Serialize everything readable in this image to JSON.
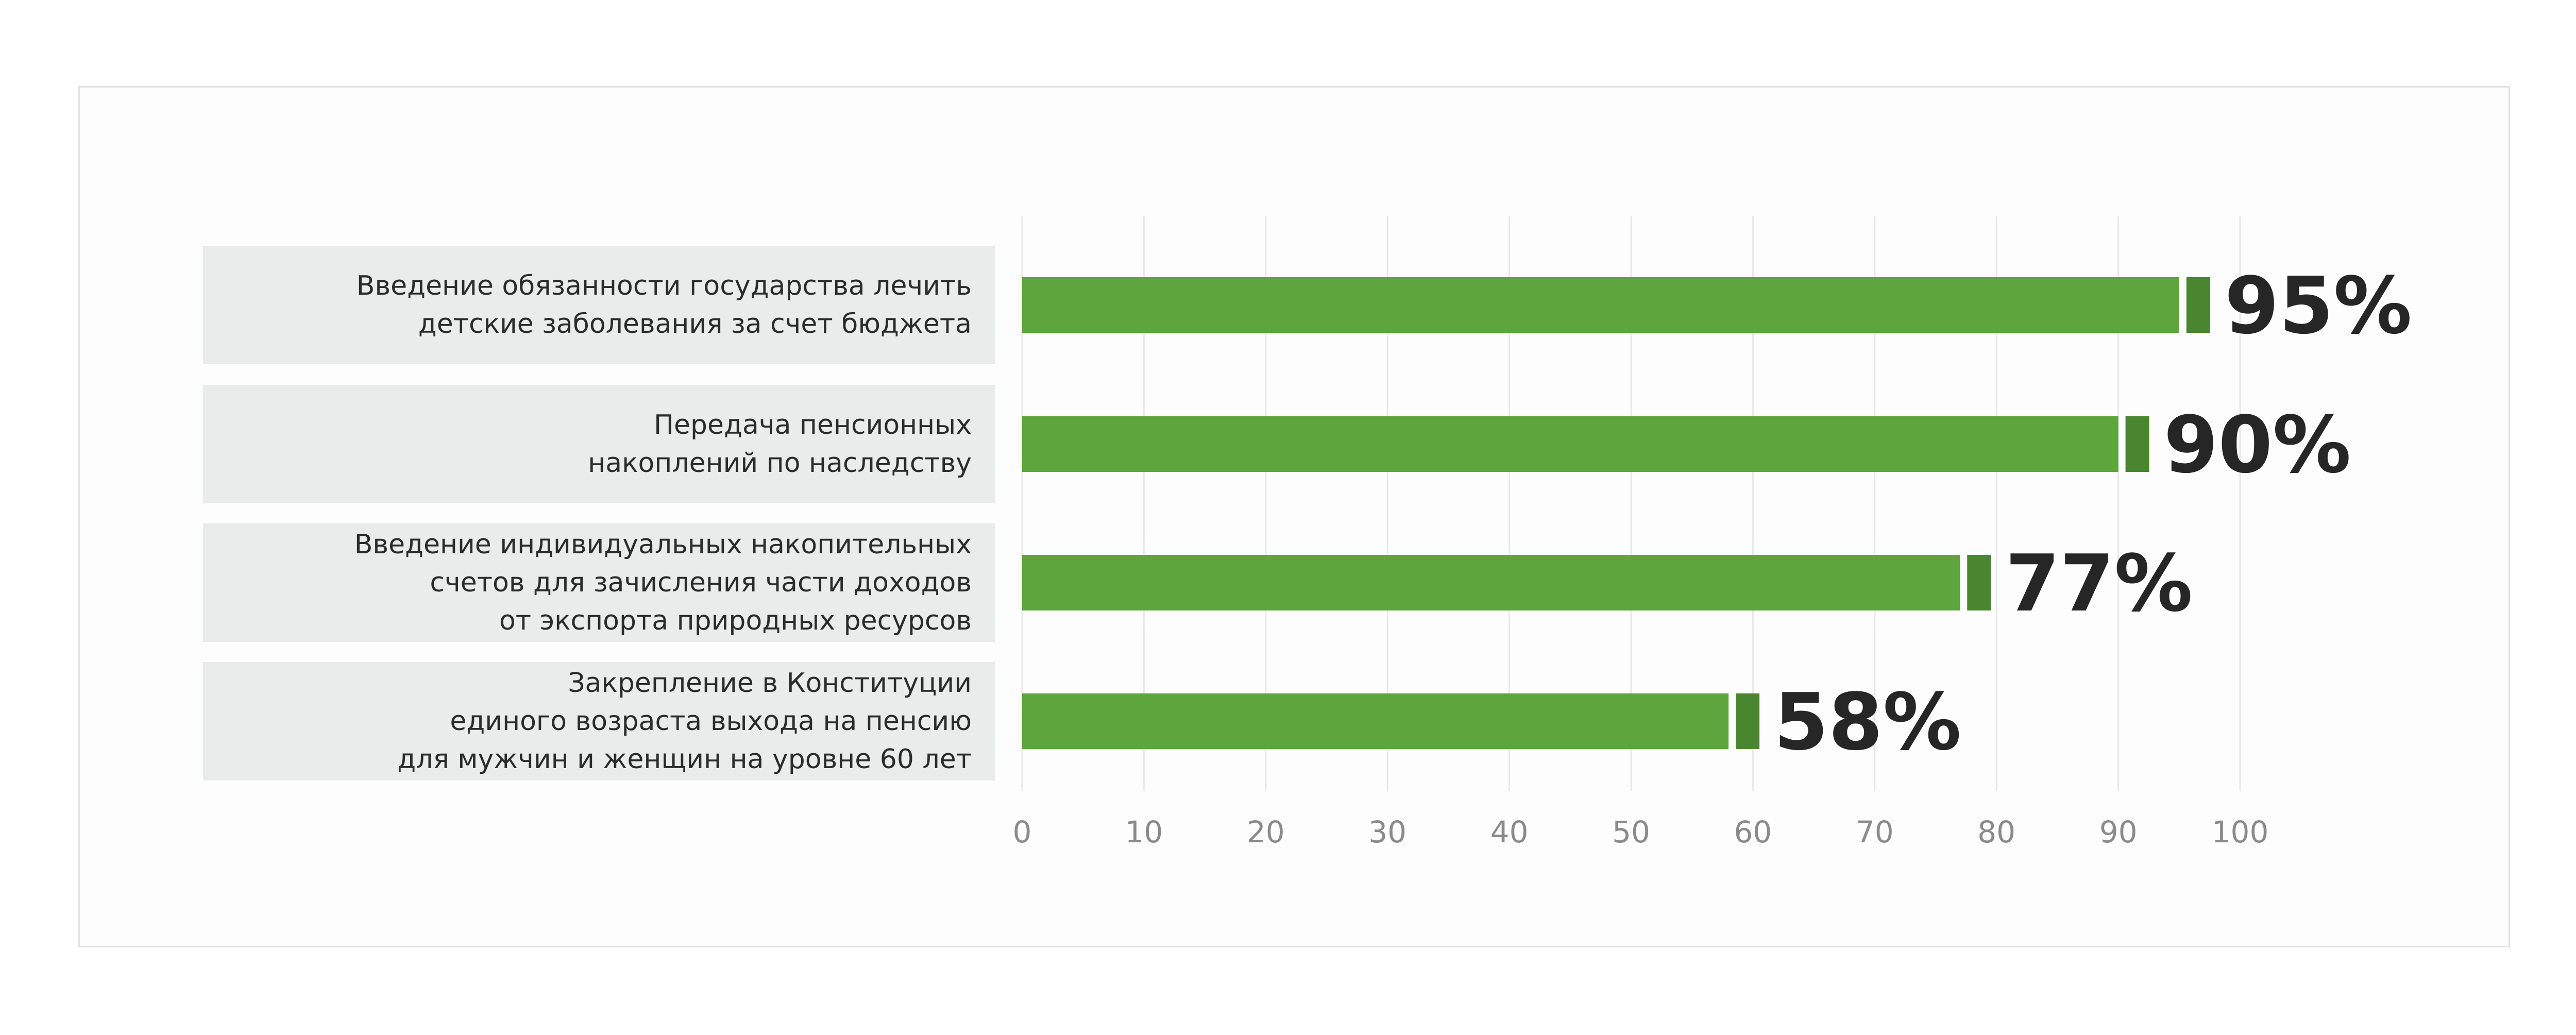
{
  "colors": {
    "bar": "#5ea53d",
    "bar_cap": "#4a8530",
    "grid": "#e8e8e8",
    "category_box": "#eaeceb"
  },
  "chart_data": {
    "type": "bar",
    "orientation": "horizontal",
    "title": "",
    "xlabel": "",
    "ylabel": "",
    "xlim": [
      0,
      100
    ],
    "x_ticks": [
      0,
      10,
      20,
      30,
      40,
      50,
      60,
      70,
      80,
      90,
      100
    ],
    "grid": "vertical",
    "categories": [
      [
        "Введение обязанности государства лечить",
        "детские заболевания за счет бюджета"
      ],
      [
        "Передача пенсионных",
        "накоплений по наследству"
      ],
      [
        "Введение индивидуальных накопительных",
        "счетов для зачисления части доходов",
        "от экспорта природных ресурсов"
      ],
      [
        "Закрепление в Конституции",
        "единого возраста выхода на пенсию",
        "для мужчин и женщин на уровне 60 лет"
      ]
    ],
    "values": [
      95,
      90,
      77,
      58
    ],
    "value_labels": [
      "95%",
      "90%",
      "77%",
      "58%"
    ]
  }
}
